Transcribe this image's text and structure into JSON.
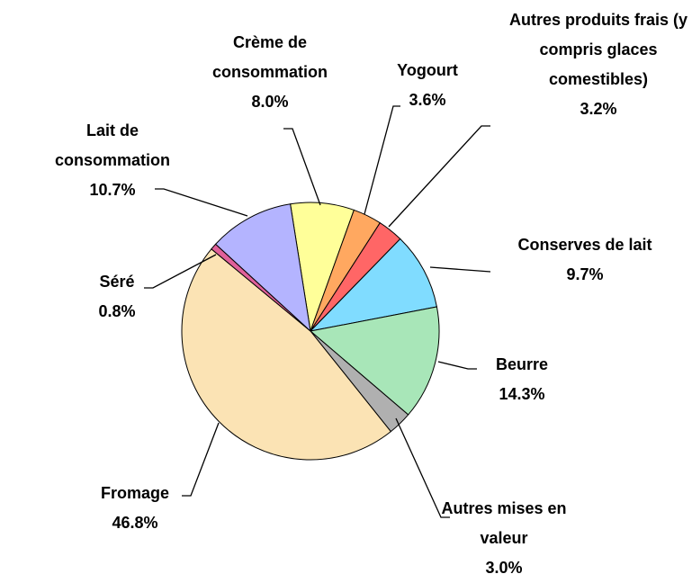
{
  "chart_data": {
    "type": "pie",
    "categories": [
      "Crème de consommation",
      "Yogourt",
      "Autres produits frais (y compris glaces comestibles)",
      "Conserves de lait",
      "Beurre",
      "Autres mises en valeur",
      "Fromage",
      "Séré",
      "Lait de consommation"
    ],
    "values": [
      8.0,
      3.6,
      3.2,
      9.7,
      14.3,
      3.0,
      46.8,
      0.8,
      10.7
    ],
    "value_labels": [
      "8.0%",
      "3.6%",
      "3.2%",
      "9.7%",
      "14.3%",
      "3.0%",
      "46.8%",
      "0.8%",
      "10.7%"
    ],
    "colors": [
      "#ffff99",
      "#ffa860",
      "#ff6666",
      "#80dcff",
      "#a8e6b8",
      "#b0b0b0",
      "#fbe3b4",
      "#e0609a",
      "#b4b4ff"
    ]
  }
}
